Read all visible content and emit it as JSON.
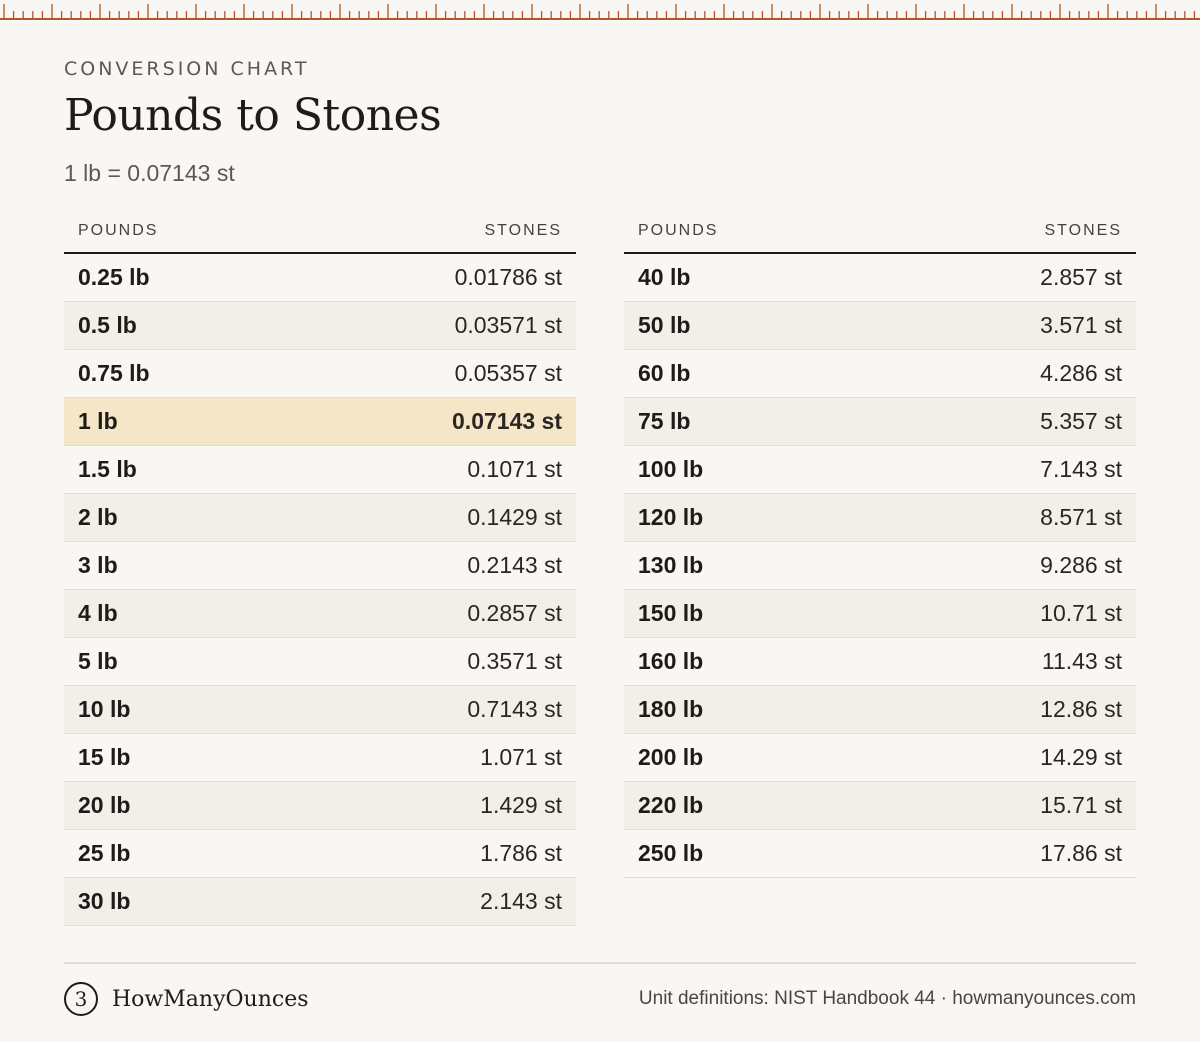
{
  "header": {
    "eyebrow": "CONVERSION CHART",
    "title": "Pounds to Stones",
    "subtitle": "1 lb = 0.07143 st"
  },
  "table": {
    "col_pounds": "POUNDS",
    "col_stones": "STONES",
    "left_rows": [
      {
        "lb": "0.25 lb",
        "st": "0.01786 st"
      },
      {
        "lb": "0.5 lb",
        "st": "0.03571 st"
      },
      {
        "lb": "0.75 lb",
        "st": "0.05357 st"
      },
      {
        "lb": "1 lb",
        "st": "0.07143 st",
        "highlight": true
      },
      {
        "lb": "1.5 lb",
        "st": "0.1071 st"
      },
      {
        "lb": "2 lb",
        "st": "0.1429 st"
      },
      {
        "lb": "3 lb",
        "st": "0.2143 st"
      },
      {
        "lb": "4 lb",
        "st": "0.2857 st"
      },
      {
        "lb": "5 lb",
        "st": "0.3571 st"
      },
      {
        "lb": "10 lb",
        "st": "0.7143 st"
      },
      {
        "lb": "15 lb",
        "st": "1.071 st"
      },
      {
        "lb": "20 lb",
        "st": "1.429 st"
      },
      {
        "lb": "25 lb",
        "st": "1.786 st"
      },
      {
        "lb": "30 lb",
        "st": "2.143 st"
      }
    ],
    "right_rows": [
      {
        "lb": "40 lb",
        "st": "2.857 st"
      },
      {
        "lb": "50 lb",
        "st": "3.571 st"
      },
      {
        "lb": "60 lb",
        "st": "4.286 st"
      },
      {
        "lb": "75 lb",
        "st": "5.357 st"
      },
      {
        "lb": "100 lb",
        "st": "7.143 st"
      },
      {
        "lb": "120 lb",
        "st": "8.571 st"
      },
      {
        "lb": "130 lb",
        "st": "9.286 st"
      },
      {
        "lb": "150 lb",
        "st": "10.71 st"
      },
      {
        "lb": "160 lb",
        "st": "11.43 st"
      },
      {
        "lb": "180 lb",
        "st": "12.86 st"
      },
      {
        "lb": "200 lb",
        "st": "14.29 st"
      },
      {
        "lb": "220 lb",
        "st": "15.71 st"
      },
      {
        "lb": "250 lb",
        "st": "17.86 st"
      }
    ]
  },
  "footer": {
    "brand_mark": "3",
    "brand_name": "HowManyOunces",
    "credit": "Unit definitions: NIST Handbook 44 · howmanyounces.com"
  },
  "colors": {
    "background": "#f9f7f3",
    "ruler": "#b5562a",
    "highlight": "#f4e6c6"
  }
}
